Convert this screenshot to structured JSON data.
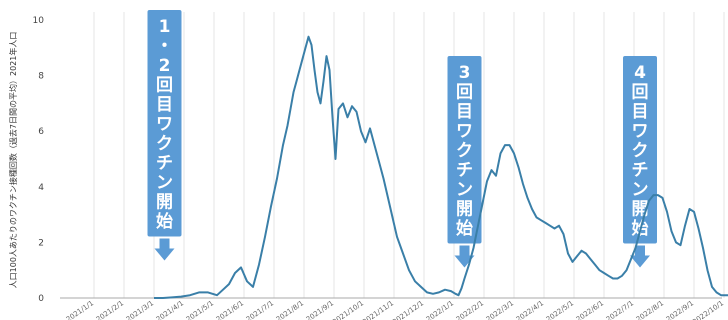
{
  "chart_data": {
    "type": "line",
    "title": "",
    "ylabel": "人口100人あたりのワクチン接種回数（過去7日間の平均）2021年人口",
    "xlabel": "",
    "ylim": [
      0,
      10
    ],
    "yticks": [
      0,
      2,
      4,
      6,
      8,
      10
    ],
    "grid": "vertical",
    "line_color": "#3a7fa8",
    "x_labels": [
      "2021/1/1",
      "2021/2/1",
      "2021/3/1",
      "2021/4/1",
      "2021/5/1",
      "2021/6/1",
      "2021/7/1",
      "2021/8/1",
      "2021/9/1",
      "2021/10/1",
      "2021/11/1",
      "2021/12/1",
      "2022/1/1",
      "2022/2/1",
      "2022/3/1",
      "2022/4/1",
      "2022/5/1",
      "2022/6/1",
      "2022/7/1",
      "2022/8/1",
      "2022/9/1",
      "2022/10/1"
    ],
    "series": [
      {
        "name": "",
        "x": [
          2.0,
          2.3,
          2.6,
          2.9,
          3.2,
          3.5,
          3.8,
          4.1,
          4.3,
          4.5,
          4.7,
          4.9,
          5.1,
          5.3,
          5.5,
          5.7,
          5.9,
          6.1,
          6.3,
          6.45,
          6.55,
          6.65,
          6.75,
          6.85,
          6.95,
          7.05,
          7.15,
          7.25,
          7.35,
          7.45,
          7.55,
          7.65,
          7.75,
          7.85,
          7.95,
          8.05,
          8.15,
          8.3,
          8.45,
          8.6,
          8.75,
          8.9,
          9.05,
          9.2,
          9.35,
          9.5,
          9.65,
          9.8,
          9.95,
          10.1,
          10.3,
          10.5,
          10.7,
          10.9,
          11.1,
          11.3,
          11.5,
          11.7,
          11.9,
          12.05,
          12.15,
          12.25,
          12.35,
          12.5,
          12.65,
          12.8,
          12.95,
          13.1,
          13.25,
          13.4,
          13.55,
          13.7,
          13.85,
          14.0,
          14.15,
          14.3,
          14.45,
          14.6,
          14.75,
          14.9,
          15.05,
          15.2,
          15.35,
          15.5,
          15.65,
          15.8,
          15.95,
          16.1,
          16.25,
          16.4,
          16.55,
          16.7,
          16.85,
          17.0,
          17.15,
          17.3,
          17.45,
          17.6,
          17.75,
          17.9,
          18.05,
          18.2,
          18.35,
          18.5,
          18.65,
          18.8,
          18.95,
          19.1,
          19.25,
          19.4,
          19.55,
          19.7,
          19.85,
          20.0,
          20.15,
          20.3,
          20.45,
          20.6,
          20.75,
          20.9,
          21.05,
          21.2,
          21.35,
          21.5,
          21.65
        ],
        "values": [
          0,
          0,
          0.02,
          0.05,
          0.1,
          0.2,
          0.2,
          0.1,
          0.3,
          0.5,
          0.9,
          1.1,
          0.6,
          0.4,
          1.2,
          2.2,
          3.3,
          4.3,
          5.5,
          6.2,
          6.8,
          7.4,
          7.8,
          8.2,
          8.6,
          9.0,
          9.4,
          9.1,
          8.2,
          7.4,
          7.0,
          7.8,
          8.7,
          8.2,
          6.5,
          5.0,
          6.8,
          7.0,
          6.5,
          6.9,
          6.7,
          6.0,
          5.6,
          6.1,
          5.5,
          4.9,
          4.3,
          3.6,
          2.9,
          2.2,
          1.6,
          1.0,
          0.6,
          0.4,
          0.2,
          0.15,
          0.2,
          0.3,
          0.25,
          0.15,
          0.1,
          0.35,
          0.7,
          1.2,
          1.8,
          2.6,
          3.4,
          4.2,
          4.6,
          4.4,
          5.2,
          5.5,
          5.5,
          5.2,
          4.7,
          4.1,
          3.6,
          3.2,
          2.9,
          2.8,
          2.7,
          2.6,
          2.5,
          2.6,
          2.3,
          1.6,
          1.3,
          1.5,
          1.7,
          1.6,
          1.4,
          1.2,
          1.0,
          0.9,
          0.8,
          0.7,
          0.7,
          0.8,
          1.0,
          1.4,
          1.8,
          2.4,
          3.0,
          3.5,
          3.7,
          3.7,
          3.6,
          3.1,
          2.4,
          2.0,
          1.9,
          2.6,
          3.2,
          3.1,
          2.5,
          1.8,
          1.0,
          0.4,
          0.2,
          0.1,
          0.1,
          0.1,
          0.1,
          0.1,
          0.1
        ]
      }
    ],
    "annotations": [
      {
        "text": "1・2回目ワクチン開始",
        "chars": [
          "1",
          "・",
          "2",
          "回",
          "目",
          "ワ",
          "ク",
          "チ",
          "ン",
          "開",
          "始"
        ],
        "x": 2.35
      },
      {
        "text": "3回目ワクチン開始",
        "chars": [
          "3",
          "回",
          "目",
          "ワ",
          "ク",
          "チ",
          "ン",
          "開",
          "始"
        ],
        "x": 12.35
      },
      {
        "text": "4回目ワクチン開始",
        "chars": [
          "4",
          "回",
          "目",
          "ワ",
          "ク",
          "チ",
          "ン",
          "開",
          "始"
        ],
        "x": 18.2
      }
    ],
    "annotation_color": "#5b9bd5"
  }
}
